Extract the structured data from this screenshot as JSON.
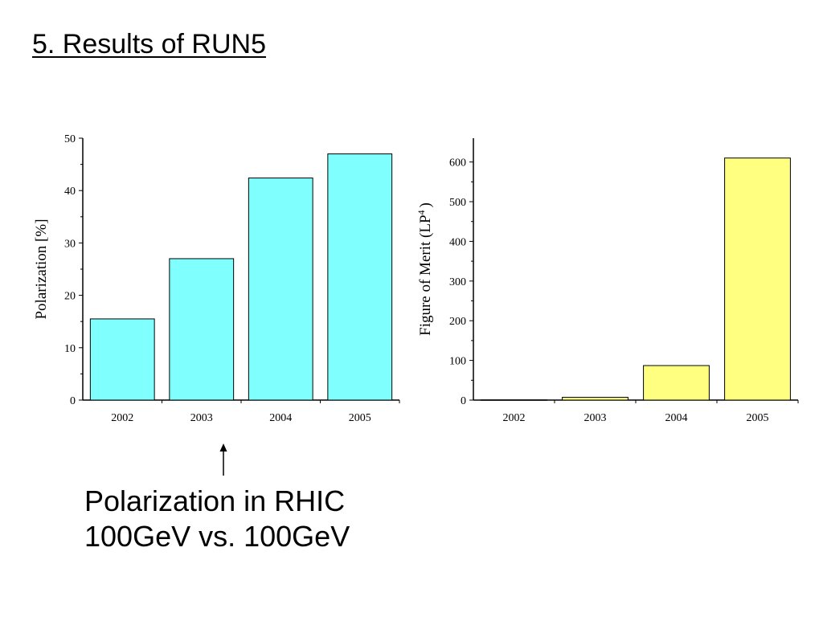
{
  "slide": {
    "title": "5. Results of RUN5",
    "caption_line1": "Polarization in RHIC",
    "caption_line2": "100GeV vs. 100GeV"
  },
  "chart_data": [
    {
      "type": "bar",
      "categories": [
        "2002",
        "2003",
        "2004",
        "2005"
      ],
      "values": [
        15.5,
        27,
        42.4,
        47
      ],
      "title": "",
      "xlabel": "",
      "ylabel": "Polarization [%]",
      "ylim": [
        0,
        50
      ],
      "yticks": [
        0,
        10,
        20,
        30,
        40,
        50
      ],
      "bar_color": "#80ffff",
      "grid": false
    },
    {
      "type": "bar",
      "categories": [
        "2002",
        "2003",
        "2004",
        "2005"
      ],
      "values": [
        0.5,
        7,
        87,
        610
      ],
      "title": "",
      "xlabel": "",
      "ylabel_main": "Figure of Merit (LP",
      "ylabel_sup": "4",
      "ylabel_end": ")",
      "ylim": [
        0,
        660
      ],
      "yticks": [
        0,
        100,
        200,
        300,
        400,
        500,
        600
      ],
      "bar_color": "#ffff80",
      "grid": false
    }
  ]
}
